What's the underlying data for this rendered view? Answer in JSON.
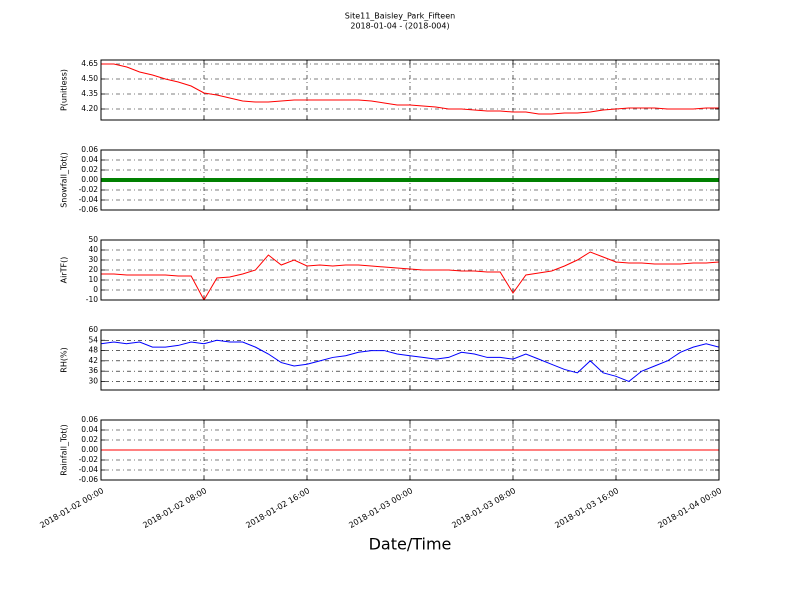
{
  "title": "Site11_Baisley_Park_Fifteen",
  "subtitle": "2018-01-04 - (2018-004)",
  "x_axis": {
    "label": "Date/Time",
    "xlim": [
      "2018-01-02 00:00",
      "2018-01-04 00:00"
    ],
    "xticks": [
      "2018-01-02 00:00",
      "2018-01-02 08:00",
      "2018-01-02 16:00",
      "2018-01-03 00:00",
      "2018-01-03 08:00",
      "2018-01-03 16:00",
      "2018-01-04 00:00"
    ],
    "x": [
      "2018-01-02 00:00",
      "2018-01-02 01:00",
      "2018-01-02 02:00",
      "2018-01-02 03:00",
      "2018-01-02 04:00",
      "2018-01-02 05:00",
      "2018-01-02 06:00",
      "2018-01-02 07:00",
      "2018-01-02 08:00",
      "2018-01-02 09:00",
      "2018-01-02 10:00",
      "2018-01-02 11:00",
      "2018-01-02 12:00",
      "2018-01-02 13:00",
      "2018-01-02 14:00",
      "2018-01-02 15:00",
      "2018-01-02 16:00",
      "2018-01-02 17:00",
      "2018-01-02 18:00",
      "2018-01-02 19:00",
      "2018-01-02 20:00",
      "2018-01-02 21:00",
      "2018-01-02 22:00",
      "2018-01-02 23:00",
      "2018-01-03 00:00",
      "2018-01-03 01:00",
      "2018-01-03 02:00",
      "2018-01-03 03:00",
      "2018-01-03 04:00",
      "2018-01-03 05:00",
      "2018-01-03 06:00",
      "2018-01-03 07:00",
      "2018-01-03 08:00",
      "2018-01-03 09:00",
      "2018-01-03 10:00",
      "2018-01-03 11:00",
      "2018-01-03 12:00",
      "2018-01-03 13:00",
      "2018-01-03 14:00",
      "2018-01-03 15:00",
      "2018-01-03 16:00",
      "2018-01-03 17:00",
      "2018-01-03 18:00",
      "2018-01-03 19:00",
      "2018-01-03 20:00",
      "2018-01-03 21:00",
      "2018-01-03 22:00",
      "2018-01-03 23:00",
      "2018-01-04 00:00"
    ]
  },
  "chart_data": [
    {
      "type": "line",
      "ylabel": "P(unitless)",
      "color": "#ff0000",
      "line_width": 1,
      "grid": true,
      "ylim": [
        4.09,
        4.69
      ],
      "yticks": [
        {
          "value": 4.2,
          "label": "4.20"
        },
        4.35,
        {
          "value": 4.5,
          "label": "4.50"
        },
        4.65
      ],
      "values": [
        4.65,
        4.65,
        4.62,
        4.57,
        4.54,
        4.5,
        4.47,
        4.43,
        4.36,
        4.34,
        4.31,
        4.28,
        4.27,
        4.27,
        4.28,
        4.29,
        4.29,
        4.29,
        4.29,
        4.29,
        4.29,
        4.28,
        4.26,
        4.24,
        4.24,
        4.23,
        4.22,
        4.2,
        4.2,
        4.19,
        4.18,
        4.18,
        4.17,
        4.17,
        4.15,
        4.15,
        4.16,
        4.16,
        4.17,
        4.19,
        4.2,
        4.21,
        4.21,
        4.21,
        4.2,
        4.2,
        4.2,
        4.21,
        4.21
      ]
    },
    {
      "type": "line",
      "ylabel": "Snowfall_Tot()",
      "color": "#008000",
      "line_width": 4,
      "grid": true,
      "ylim": [
        -0.06,
        0.06
      ],
      "yticks": [
        -0.06,
        -0.04,
        -0.02,
        {
          "value": 0,
          "label": "0.00"
        },
        0.02,
        0.04,
        0.06
      ],
      "values": [
        0,
        0,
        0,
        0,
        0,
        0,
        0,
        0,
        0,
        0,
        0,
        0,
        0,
        0,
        0,
        0,
        0,
        0,
        0,
        0,
        0,
        0,
        0,
        0,
        0,
        0,
        0,
        0,
        0,
        0,
        0,
        0,
        0,
        0,
        0,
        0,
        0,
        0,
        0,
        0,
        0,
        0,
        0,
        0,
        0,
        0,
        0,
        0,
        0
      ]
    },
    {
      "type": "line",
      "ylabel": "AirTF()",
      "color": "#ff0000",
      "line_width": 1,
      "grid": true,
      "ylim": [
        -10,
        50
      ],
      "yticks": [
        -10,
        0,
        10,
        20,
        30,
        40,
        50
      ],
      "values": [
        16,
        16,
        15,
        15,
        15,
        15,
        14,
        14,
        -10,
        12,
        13,
        16,
        20,
        35,
        25,
        30,
        24,
        25,
        24,
        25,
        25,
        24,
        23,
        22,
        21,
        20,
        20,
        20,
        19,
        19,
        18,
        18,
        -3,
        15,
        17,
        19,
        24,
        30,
        38,
        33,
        28,
        27,
        27,
        26,
        26,
        26,
        27,
        27,
        28
      ]
    },
    {
      "type": "line",
      "ylabel": "RH(%)",
      "color": "#0000ff",
      "line_width": 1,
      "grid": true,
      "ylim": [
        25,
        60
      ],
      "yticks": [
        30,
        36,
        42,
        48,
        54,
        60
      ],
      "values": [
        52,
        53,
        52,
        53,
        50,
        50,
        51,
        53,
        52,
        54,
        53,
        53,
        50,
        46,
        41,
        39,
        40,
        42,
        44,
        45,
        47,
        48,
        48,
        46,
        45,
        44,
        43,
        44,
        47,
        46,
        44,
        44,
        43,
        46,
        43,
        40,
        37,
        35,
        42,
        35,
        33,
        30,
        36,
        39,
        42,
        47,
        50,
        52,
        50
      ]
    },
    {
      "type": "line",
      "ylabel": "Rainfall_Tot()",
      "color": "#ff0000",
      "line_width": 1,
      "grid": true,
      "ylim": [
        -0.06,
        0.06
      ],
      "yticks": [
        -0.06,
        -0.04,
        -0.02,
        {
          "value": 0,
          "label": "0.00"
        },
        0.02,
        0.04,
        0.06
      ],
      "values": [
        0,
        0,
        0,
        0,
        0,
        0,
        0,
        0,
        0,
        0,
        0,
        0,
        0,
        0,
        0,
        0,
        0,
        0,
        0,
        0,
        0,
        0,
        0,
        0,
        0,
        0,
        0,
        0,
        0,
        0,
        0,
        0,
        0,
        0,
        0,
        0,
        0,
        0,
        0,
        0,
        0,
        0,
        0,
        0,
        0,
        0,
        0,
        0,
        0
      ]
    }
  ]
}
